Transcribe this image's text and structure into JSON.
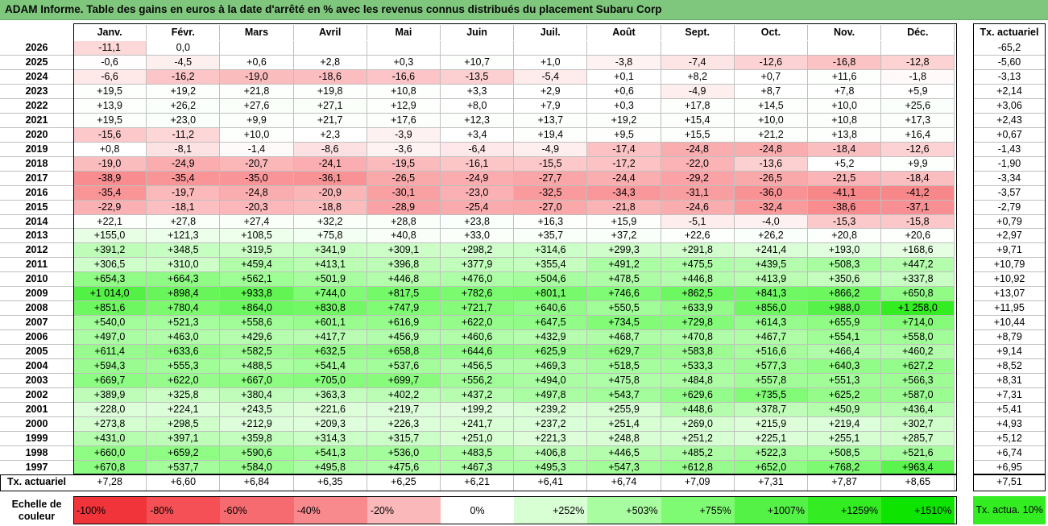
{
  "title": "ADAM Informe. Table des gains en euros à la date d'arrêté en % avec les revenus connus distribués du placement Subaru Corp",
  "chart_data": {
    "type": "heatmap",
    "months": [
      "Janv.",
      "Févr.",
      "Mars",
      "Avril",
      "Mai",
      "Juin",
      "Juil.",
      "Août",
      "Sept.",
      "Oct.",
      "Nov.",
      "Déc."
    ],
    "annual_header": "Tx. actuariel",
    "rows": [
      {
        "year": "2026",
        "values": [
          "-11,1",
          "0,0",
          "",
          "",
          "",
          "",
          "",
          "",
          "",
          "",
          "",
          ""
        ],
        "annual": "-65,2"
      },
      {
        "year": "2025",
        "values": [
          "-0,6",
          "-4,5",
          "+0,6",
          "+2,8",
          "+0,3",
          "+10,7",
          "+1,0",
          "-3,8",
          "-7,4",
          "-12,6",
          "-16,8",
          "-12,8"
        ],
        "annual": "-5,60"
      },
      {
        "year": "2024",
        "values": [
          "-6,6",
          "-16,2",
          "-19,0",
          "-18,6",
          "-16,6",
          "-13,5",
          "-5,4",
          "+0,1",
          "+8,2",
          "+0,7",
          "+11,6",
          "-1,8"
        ],
        "annual": "-3,13"
      },
      {
        "year": "2023",
        "values": [
          "+19,5",
          "+19,2",
          "+21,8",
          "+19,8",
          "+10,8",
          "+3,3",
          "+2,9",
          "+0,6",
          "-4,9",
          "+8,7",
          "+7,8",
          "+5,9"
        ],
        "annual": "+2,14"
      },
      {
        "year": "2022",
        "values": [
          "+13,9",
          "+26,2",
          "+27,6",
          "+27,1",
          "+12,9",
          "+8,0",
          "+7,9",
          "+0,3",
          "+17,8",
          "+14,5",
          "+10,0",
          "+25,6"
        ],
        "annual": "+3,06"
      },
      {
        "year": "2021",
        "values": [
          "+19,5",
          "+23,0",
          "+9,9",
          "+21,7",
          "+17,6",
          "+12,3",
          "+13,7",
          "+19,2",
          "+15,4",
          "+10,0",
          "+10,8",
          "+17,3"
        ],
        "annual": "+2,43"
      },
      {
        "year": "2020",
        "values": [
          "-15,6",
          "-11,2",
          "+10,0",
          "+2,3",
          "-3,9",
          "+3,4",
          "+19,4",
          "+9,5",
          "+15,5",
          "+21,2",
          "+13,8",
          "+16,4"
        ],
        "annual": "+0,67"
      },
      {
        "year": "2019",
        "values": [
          "+0,8",
          "-8,1",
          "-1,4",
          "-8,6",
          "-3,6",
          "-6,4",
          "-4,9",
          "-17,4",
          "-24,8",
          "-24,8",
          "-18,4",
          "-12,6"
        ],
        "annual": "-1,43"
      },
      {
        "year": "2018",
        "values": [
          "-19,0",
          "-24,9",
          "-20,7",
          "-24,1",
          "-19,5",
          "-16,1",
          "-15,5",
          "-17,2",
          "-22,0",
          "-13,6",
          "+5,2",
          "+9,9"
        ],
        "annual": "-1,90"
      },
      {
        "year": "2017",
        "values": [
          "-38,9",
          "-35,4",
          "-35,0",
          "-36,1",
          "-26,5",
          "-24,9",
          "-27,7",
          "-24,4",
          "-29,2",
          "-26,5",
          "-21,5",
          "-18,4"
        ],
        "annual": "-3,34"
      },
      {
        "year": "2016",
        "values": [
          "-35,4",
          "-19,7",
          "-24,8",
          "-20,9",
          "-30,1",
          "-23,0",
          "-32,5",
          "-34,3",
          "-31,1",
          "-36,0",
          "-41,1",
          "-41,2"
        ],
        "annual": "-3,57"
      },
      {
        "year": "2015",
        "values": [
          "-22,9",
          "-18,1",
          "-20,3",
          "-18,8",
          "-28,9",
          "-25,4",
          "-27,0",
          "-21,8",
          "-24,6",
          "-32,4",
          "-38,6",
          "-37,1"
        ],
        "annual": "-2,79"
      },
      {
        "year": "2014",
        "values": [
          "+22,1",
          "+27,8",
          "+27,4",
          "+32,2",
          "+28,8",
          "+23,8",
          "+16,3",
          "+15,9",
          "-5,1",
          "-4,0",
          "-15,3",
          "-15,8"
        ],
        "annual": "+0,79"
      },
      {
        "year": "2013",
        "values": [
          "+155,0",
          "+121,3",
          "+108,5",
          "+75,8",
          "+40,8",
          "+33,0",
          "+35,7",
          "+37,2",
          "+22,6",
          "+26,2",
          "+20,8",
          "+20,6"
        ],
        "annual": "+2,97"
      },
      {
        "year": "2012",
        "values": [
          "+391,2",
          "+348,5",
          "+319,5",
          "+341,9",
          "+309,1",
          "+298,2",
          "+314,6",
          "+299,3",
          "+291,8",
          "+241,4",
          "+193,0",
          "+168,6"
        ],
        "annual": "+9,71"
      },
      {
        "year": "2011",
        "values": [
          "+306,5",
          "+310,0",
          "+459,4",
          "+413,1",
          "+396,8",
          "+377,9",
          "+355,4",
          "+491,2",
          "+475,5",
          "+439,5",
          "+508,3",
          "+447,2"
        ],
        "annual": "+10,79"
      },
      {
        "year": "2010",
        "values": [
          "+654,3",
          "+664,3",
          "+562,1",
          "+501,9",
          "+446,8",
          "+476,0",
          "+504,6",
          "+478,5",
          "+446,8",
          "+413,9",
          "+350,6",
          "+337,8"
        ],
        "annual": "+10,92"
      },
      {
        "year": "2009",
        "values": [
          "+1 014,0",
          "+898,4",
          "+933,8",
          "+744,0",
          "+817,5",
          "+782,6",
          "+801,1",
          "+746,6",
          "+862,5",
          "+841,3",
          "+866,2",
          "+650,8"
        ],
        "annual": "+13,07"
      },
      {
        "year": "2008",
        "values": [
          "+851,6",
          "+780,4",
          "+864,0",
          "+830,8",
          "+747,9",
          "+721,7",
          "+640,6",
          "+550,5",
          "+633,9",
          "+856,0",
          "+988,0",
          "+1 258,0"
        ],
        "annual": "+11,95"
      },
      {
        "year": "2007",
        "values": [
          "+540,0",
          "+521,3",
          "+558,6",
          "+601,1",
          "+616,9",
          "+622,0",
          "+647,5",
          "+734,5",
          "+729,8",
          "+614,3",
          "+655,9",
          "+714,0"
        ],
        "annual": "+10,44"
      },
      {
        "year": "2006",
        "values": [
          "+497,0",
          "+463,0",
          "+429,6",
          "+417,7",
          "+456,9",
          "+460,6",
          "+432,9",
          "+468,7",
          "+470,8",
          "+467,7",
          "+554,1",
          "+558,0"
        ],
        "annual": "+8,79"
      },
      {
        "year": "2005",
        "values": [
          "+611,4",
          "+633,6",
          "+582,5",
          "+632,5",
          "+658,8",
          "+644,6",
          "+625,9",
          "+629,7",
          "+583,8",
          "+516,6",
          "+466,4",
          "+460,2"
        ],
        "annual": "+9,14"
      },
      {
        "year": "2004",
        "values": [
          "+594,3",
          "+555,3",
          "+488,5",
          "+541,4",
          "+537,6",
          "+456,5",
          "+469,3",
          "+518,5",
          "+533,3",
          "+577,3",
          "+640,3",
          "+627,2"
        ],
        "annual": "+8,52"
      },
      {
        "year": "2003",
        "values": [
          "+669,7",
          "+622,0",
          "+667,0",
          "+705,0",
          "+699,7",
          "+556,2",
          "+494,0",
          "+475,8",
          "+484,8",
          "+557,8",
          "+551,3",
          "+566,3"
        ],
        "annual": "+8,31"
      },
      {
        "year": "2002",
        "values": [
          "+389,9",
          "+325,8",
          "+380,4",
          "+363,3",
          "+402,2",
          "+437,2",
          "+497,8",
          "+543,7",
          "+629,6",
          "+735,5",
          "+625,2",
          "+587,0"
        ],
        "annual": "+7,31"
      },
      {
        "year": "2001",
        "values": [
          "+228,0",
          "+224,1",
          "+243,5",
          "+221,6",
          "+219,7",
          "+199,2",
          "+239,2",
          "+255,9",
          "+448,6",
          "+378,7",
          "+450,9",
          "+436,4"
        ],
        "annual": "+5,41"
      },
      {
        "year": "2000",
        "values": [
          "+273,8",
          "+298,5",
          "+212,9",
          "+209,3",
          "+226,3",
          "+241,7",
          "+237,2",
          "+251,4",
          "+269,0",
          "+215,9",
          "+219,4",
          "+302,7"
        ],
        "annual": "+4,93"
      },
      {
        "year": "1999",
        "values": [
          "+431,0",
          "+397,1",
          "+359,8",
          "+314,3",
          "+315,7",
          "+251,0",
          "+221,3",
          "+248,8",
          "+251,2",
          "+225,1",
          "+255,1",
          "+285,7"
        ],
        "annual": "+5,12"
      },
      {
        "year": "1998",
        "values": [
          "+660,0",
          "+659,2",
          "+590,6",
          "+541,3",
          "+536,0",
          "+483,5",
          "+406,8",
          "+446,5",
          "+485,2",
          "+522,3",
          "+508,5",
          "+521,6"
        ],
        "annual": "+6,74"
      },
      {
        "year": "1997",
        "values": [
          "+670,8",
          "+537,7",
          "+584,0",
          "+495,8",
          "+475,6",
          "+467,3",
          "+495,3",
          "+547,3",
          "+612,8",
          "+652,0",
          "+768,2",
          "+963,4"
        ],
        "annual": "+6,95"
      }
    ],
    "footer": {
      "label": "Tx. actuariel",
      "values": [
        "+7,28",
        "+6,60",
        "+6,84",
        "+6,35",
        "+6,25",
        "+6,21",
        "+6,41",
        "+6,74",
        "+7,09",
        "+7,31",
        "+7,87",
        "+8,65"
      ],
      "annual": "+7,51"
    },
    "scale": {
      "label": "Echelle de couleur",
      "items": [
        {
          "text": "-100%",
          "color": "#f0343a",
          "align": "left"
        },
        {
          "text": "-80%",
          "color": "#f45055",
          "align": "left"
        },
        {
          "text": "-60%",
          "color": "#f66b6f",
          "align": "left"
        },
        {
          "text": "-40%",
          "color": "#f8898c",
          "align": "left"
        },
        {
          "text": "-20%",
          "color": "#fbb8ba",
          "align": "left"
        },
        {
          "text": "0%",
          "color": "#ffffff",
          "align": "center"
        },
        {
          "text": "+252%",
          "color": "#d8fed4",
          "align": "right"
        },
        {
          "text": "+503%",
          "color": "#a9fda1",
          "align": "right"
        },
        {
          "text": "+755%",
          "color": "#7ffb73",
          "align": "right"
        },
        {
          "text": "+1007%",
          "color": "#54f146",
          "align": "right"
        },
        {
          "text": "+1259%",
          "color": "#33ec22",
          "align": "right"
        },
        {
          "text": "+1510%",
          "color": "#0de400",
          "align": "right"
        }
      ],
      "annual_swatch": {
        "text": "Tx. actua. 10%",
        "color": "#33ec22"
      }
    },
    "colors": {
      "title_bar": "#7fc77d",
      "grid": "#bfbfbf",
      "border": "#000000"
    }
  }
}
